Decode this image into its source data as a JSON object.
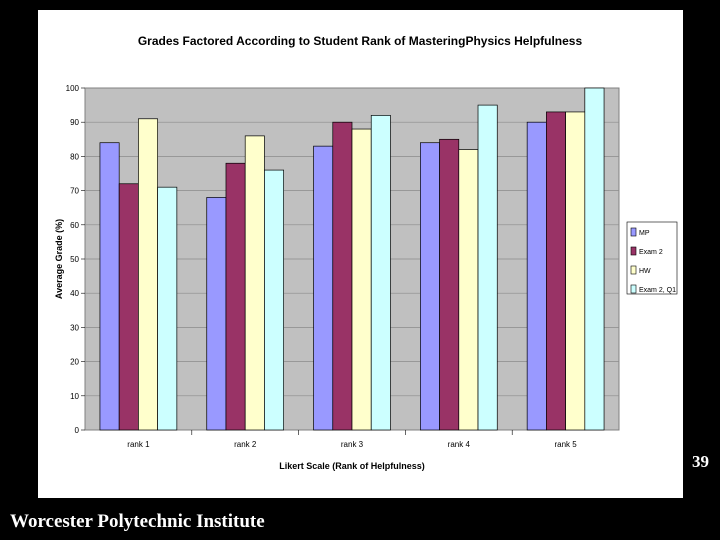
{
  "slide": {
    "number": "39",
    "footer": "Worcester Polytechnic Institute"
  },
  "colors": {
    "plot_background": "#c0c0c0",
    "gridline": "#8a8a8a",
    "series": [
      "#9999ff",
      "#993366",
      "#ffffcc",
      "#ccffff"
    ]
  },
  "chart_data": {
    "type": "bar",
    "title": "Grades Factored According to Student Rank of MasteringPhysics Helpfulness",
    "xlabel": "Likert Scale (Rank of Helpfulness)",
    "ylabel": "Average Grade (%)",
    "ylim": [
      0,
      100
    ],
    "yticks": [
      "0",
      "10",
      "20",
      "30",
      "40",
      "50",
      "60",
      "70",
      "80",
      "90",
      "100"
    ],
    "grid": true,
    "legend_position": "right",
    "categories": [
      "rank 1",
      "rank 2",
      "rank 3",
      "rank 4",
      "rank 5"
    ],
    "series": [
      {
        "name": "MP",
        "values": [
          84,
          68,
          83,
          84,
          90
        ]
      },
      {
        "name": "Exam 2",
        "values": [
          72,
          78,
          90,
          85,
          93
        ]
      },
      {
        "name": "HW",
        "values": [
          91,
          86,
          88,
          82,
          93
        ]
      },
      {
        "name": "Exam 2, Q1",
        "values": [
          71,
          76,
          92,
          95,
          100
        ]
      }
    ]
  }
}
